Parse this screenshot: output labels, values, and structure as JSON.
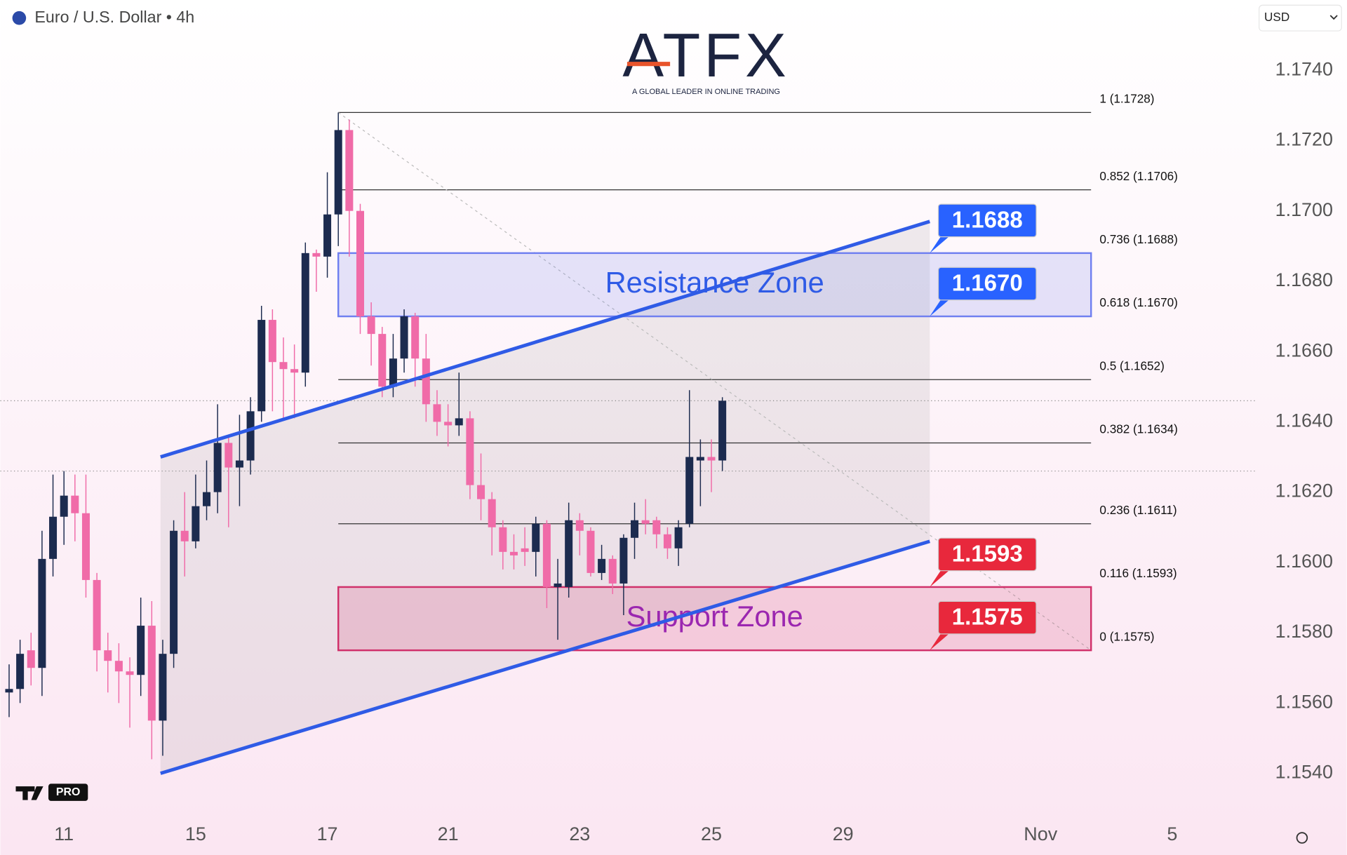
{
  "header": {
    "symbol": "Euro / U.S. Dollar • 4h",
    "currency": "USD",
    "logo": "ATFX",
    "tagline": "A GLOBAL LEADER IN ONLINE TRADING",
    "badge": "PRO"
  },
  "chart_data": {
    "type": "candlestick",
    "up_color": "#1c2b4f",
    "down_color": "#f06ba8",
    "open": [
      1.1563,
      1.1564,
      1.1575,
      1.157,
      1.1601,
      1.1613,
      1.1619,
      1.1614,
      1.1595,
      1.1575,
      1.1572,
      1.1569,
      1.1568,
      1.1582,
      1.1555,
      1.1574,
      1.1609,
      1.1606,
      1.1616,
      1.162,
      1.1634,
      1.1627,
      1.1629,
      1.1643,
      1.1669,
      1.1657,
      1.1655,
      1.1654,
      1.1688,
      1.1687,
      1.1699,
      1.1723,
      1.17,
      1.167,
      1.1665,
      1.165,
      1.1658,
      1.167,
      1.1658,
      1.1645,
      1.164,
      1.1639,
      1.1641,
      1.1622,
      1.1618,
      1.161,
      1.1603,
      1.1604,
      1.1603,
      1.1611,
      1.1593,
      1.1593,
      1.1612,
      1.1609,
      1.1597,
      1.1601,
      1.1594,
      1.1607,
      1.1612,
      1.1612,
      1.1608,
      1.1604,
      1.1611,
      1.1629,
      1.163,
      1.1629
    ],
    "high": [
      1.1571,
      1.1578,
      1.158,
      1.1609,
      1.1625,
      1.1626,
      1.1625,
      1.1625,
      1.1597,
      1.158,
      1.1577,
      1.1573,
      1.159,
      1.1589,
      1.1578,
      1.1612,
      1.162,
      1.1625,
      1.1629,
      1.1645,
      1.1636,
      1.1642,
      1.1647,
      1.1673,
      1.1672,
      1.1664,
      1.1662,
      1.1691,
      1.1689,
      1.1711,
      1.1728,
      1.1726,
      1.1702,
      1.1674,
      1.1667,
      1.1665,
      1.1672,
      1.1671,
      1.1665,
      1.1649,
      1.1645,
      1.1654,
      1.1643,
      1.1631,
      1.162,
      1.1612,
      1.1608,
      1.161,
      1.1613,
      1.1612,
      1.1601,
      1.1617,
      1.1614,
      1.161,
      1.1605,
      1.1602,
      1.1608,
      1.1617,
      1.1618,
      1.1613,
      1.161,
      1.1612,
      1.1649,
      1.1635,
      1.1635,
      1.1647
    ],
    "low": [
      1.1556,
      1.156,
      1.1565,
      1.1562,
      1.1596,
      1.1605,
      1.1606,
      1.159,
      1.1569,
      1.1563,
      1.156,
      1.1553,
      1.1562,
      1.1544,
      1.1545,
      1.157,
      1.1596,
      1.1604,
      1.1612,
      1.1614,
      1.161,
      1.1616,
      1.1625,
      1.164,
      1.1643,
      1.1641,
      1.1641,
      1.165,
      1.1677,
      1.1681,
      1.169,
      1.1687,
      1.1665,
      1.1656,
      1.1647,
      1.1647,
      1.1654,
      1.165,
      1.164,
      1.1636,
      1.1633,
      1.1636,
      1.1618,
      1.1612,
      1.1602,
      1.1598,
      1.1598,
      1.1599,
      1.1596,
      1.1587,
      1.1578,
      1.159,
      1.1602,
      1.1596,
      1.1595,
      1.1591,
      1.1585,
      1.1601,
      1.1608,
      1.1604,
      1.1601,
      1.1599,
      1.161,
      1.1616,
      1.162,
      1.1626
    ],
    "close": [
      1.1564,
      1.1574,
      1.157,
      1.1601,
      1.1613,
      1.1619,
      1.1614,
      1.1595,
      1.1575,
      1.1572,
      1.1569,
      1.1568,
      1.1582,
      1.1555,
      1.1574,
      1.1609,
      1.1606,
      1.1616,
      1.162,
      1.1634,
      1.1627,
      1.1629,
      1.1643,
      1.1669,
      1.1657,
      1.1655,
      1.1654,
      1.1688,
      1.1687,
      1.1699,
      1.1723,
      1.17,
      1.167,
      1.1665,
      1.165,
      1.1658,
      1.167,
      1.1658,
      1.1645,
      1.164,
      1.1639,
      1.1641,
      1.1622,
      1.1618,
      1.161,
      1.1603,
      1.1602,
      1.1603,
      1.1611,
      1.1593,
      1.1594,
      1.1612,
      1.1609,
      1.1597,
      1.1601,
      1.1594,
      1.1607,
      1.1612,
      1.1611,
      1.1608,
      1.1604,
      1.161,
      1.163,
      1.163,
      1.1629,
      1.1646
    ],
    "xlim": [
      -0.8,
      113.6
    ],
    "xticks": [
      {
        "value": 5,
        "label": "11"
      },
      {
        "value": 17,
        "label": "15"
      },
      {
        "value": 29,
        "label": "17"
      },
      {
        "value": 40,
        "label": "21"
      },
      {
        "value": 52,
        "label": "23"
      },
      {
        "value": 64,
        "label": "25"
      },
      {
        "value": 76,
        "label": "29"
      },
      {
        "value": 94,
        "label": "Nov"
      },
      {
        "value": 106,
        "label": "5"
      }
    ],
    "ylim": [
      1.1528,
      1.176
    ],
    "yticks": [
      {
        "value": 1.154,
        "label": "1.1540"
      },
      {
        "value": 1.156,
        "label": "1.1560"
      },
      {
        "value": 1.158,
        "label": "1.1580"
      },
      {
        "value": 1.16,
        "label": "1.1600"
      },
      {
        "value": 1.162,
        "label": "1.1620"
      },
      {
        "value": 1.164,
        "label": "1.1640"
      },
      {
        "value": 1.166,
        "label": "1.1660"
      },
      {
        "value": 1.168,
        "label": "1.1680"
      },
      {
        "value": 1.17,
        "label": "1.1700"
      },
      {
        "value": 1.172,
        "label": "1.1720"
      },
      {
        "value": 1.174,
        "label": "1.1740"
      }
    ],
    "price_lines": [
      1.1646,
      1.1626
    ],
    "channel": {
      "x": [
        13.8,
        83.9
      ],
      "upper": [
        1.163,
        1.1697
      ],
      "lower": [
        1.154,
        1.1606
      ],
      "color": "#2f5be6"
    },
    "fib": {
      "x": [
        30,
        98.6
      ],
      "levels": [
        {
          "label": "1 (1.1728)",
          "value": 1.1728
        },
        {
          "label": "0.852 (1.1706)",
          "value": 1.1706
        },
        {
          "label": "0.736 (1.1688)",
          "value": 1.1688
        },
        {
          "label": "0.618 (1.1670)",
          "value": 1.167
        },
        {
          "label": "0.5 (1.1652)",
          "value": 1.1652
        },
        {
          "label": "0.382 (1.1634)",
          "value": 1.1634
        },
        {
          "label": "0.236 (1.1611)",
          "value": 1.1611
        },
        {
          "label": "0.116 (1.1593)",
          "value": 1.1593
        },
        {
          "label": "0 (1.1575)",
          "value": 1.1575
        }
      ]
    },
    "zones": [
      {
        "label": "Resistance Zone",
        "low": 1.167,
        "high": 1.1688,
        "color": "#6f7ff0",
        "text_color": "#2f5be6"
      },
      {
        "label": "Support Zone",
        "low": 1.1575,
        "high": 1.1593,
        "color": "#d0306a",
        "text_color": "#9b27b0"
      }
    ],
    "price_tags": [
      {
        "value": 1.1688,
        "label": "1.1688",
        "color": "#2962ff"
      },
      {
        "value": 1.167,
        "label": "1.1670",
        "color": "#2962ff"
      },
      {
        "value": 1.1593,
        "label": "1.1593",
        "color": "#e8283c"
      },
      {
        "value": 1.1575,
        "label": "1.1575",
        "color": "#e8283c"
      }
    ]
  }
}
